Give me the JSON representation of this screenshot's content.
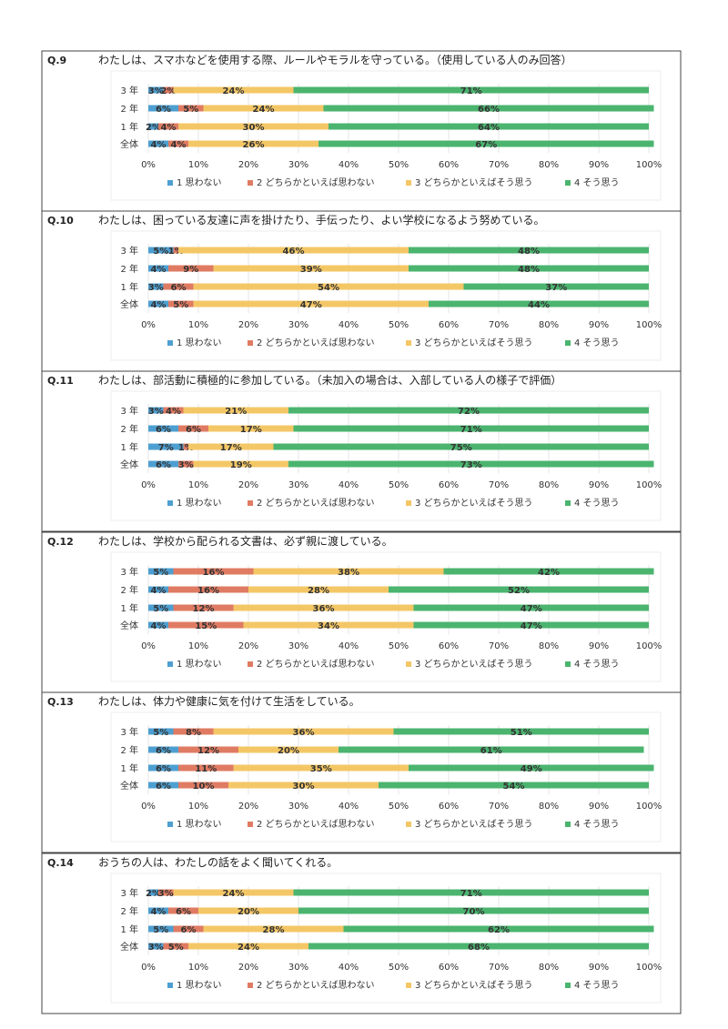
{
  "legend_labels": [
    "1 思わない",
    "2 どちらかといえば思わない",
    "3 どちらかといえばそう思う",
    "4 そう思う"
  ],
  "colors": {
    "s1": "#4e9fd1",
    "s2": "#e07b63",
    "s3": "#f4c766",
    "s4": "#4bb46f",
    "border": "#444444",
    "grid": "#e6e6e6",
    "plot_border": "#eeeeee"
  },
  "chart_data": [
    {
      "type": "bar",
      "stacked": "horizontal-100%",
      "qnum": "Q.9",
      "title": "わたしは、スマホなどを使用する際、ルールやモラルを守っている。（使用している人のみ回答）",
      "categories": [
        "3 年",
        "2 年",
        "1 年",
        "全体"
      ],
      "series": [
        {
          "name": "1 思わない",
          "values": [
            3,
            6,
            2,
            4
          ],
          "labels": [
            "3%",
            "6%",
            "2%",
            "4%"
          ]
        },
        {
          "name": "2 どちらかといえば思わない",
          "values": [
            2,
            5,
            4,
            4
          ],
          "labels": [
            "2%",
            "5%",
            "4%",
            "4%"
          ]
        },
        {
          "name": "3 どちらかといえばそう思う",
          "values": [
            24,
            24,
            30,
            26
          ],
          "labels": [
            "24%",
            "24%",
            "30%",
            "26%"
          ]
        },
        {
          "name": "4 そう思う",
          "values": [
            71,
            66,
            64,
            67
          ],
          "labels": [
            "71%",
            "66%",
            "64%",
            "67%"
          ]
        }
      ],
      "xlim": [
        0,
        100
      ],
      "xticks": [
        "0%",
        "10%",
        "20%",
        "30%",
        "40%",
        "50%",
        "60%",
        "70%",
        "80%",
        "90%",
        "100%"
      ]
    },
    {
      "type": "bar",
      "stacked": "horizontal-100%",
      "qnum": "Q.10",
      "title": "わたしは、困っている友達に声を掛けたり、手伝ったり、よい学校になるよう努めている。",
      "categories": [
        "3 年",
        "2 年",
        "1 年",
        "全体"
      ],
      "series": [
        {
          "name": "1 思わない",
          "values": [
            5,
            4,
            3,
            4
          ],
          "labels": [
            "5%",
            "4%",
            "3%",
            "4%"
          ]
        },
        {
          "name": "2 どちらかといえば思わない",
          "values": [
            1,
            9,
            6,
            5
          ],
          "labels": [
            "1%",
            "9%",
            "6%",
            "5%"
          ]
        },
        {
          "name": "3 どちらかといえばそう思う",
          "values": [
            46,
            39,
            54,
            47
          ],
          "labels": [
            "46%",
            "39%",
            "54%",
            "47%"
          ]
        },
        {
          "name": "4 そう思う",
          "values": [
            48,
            48,
            37,
            44
          ],
          "labels": [
            "48%",
            "48%",
            "37%",
            "44%"
          ]
        }
      ],
      "xlim": [
        0,
        100
      ],
      "xticks": [
        "0%",
        "10%",
        "20%",
        "30%",
        "40%",
        "50%",
        "60%",
        "70%",
        "80%",
        "90%",
        "100%"
      ]
    },
    {
      "type": "bar",
      "stacked": "horizontal-100%",
      "qnum": "Q.11",
      "title": "わたしは、部活動に積極的に参加している。（未加入の場合は、入部している人の様子で評価）",
      "categories": [
        "3 年",
        "2 年",
        "1 年",
        "全体"
      ],
      "series": [
        {
          "name": "1 思わない",
          "values": [
            3,
            6,
            7,
            6
          ],
          "labels": [
            "3%",
            "6%",
            "7%",
            "6%"
          ]
        },
        {
          "name": "2 どちらかといえば思わない",
          "values": [
            4,
            6,
            1,
            3
          ],
          "labels": [
            "4%",
            "6%",
            "1%",
            "3%"
          ]
        },
        {
          "name": "3 どちらかといえばそう思う",
          "values": [
            21,
            17,
            17,
            19
          ],
          "labels": [
            "21%",
            "17%",
            "17%",
            "19%"
          ]
        },
        {
          "name": "4 そう思う",
          "values": [
            72,
            71,
            75,
            73
          ],
          "labels": [
            "72%",
            "71%",
            "75%",
            "73%"
          ]
        }
      ],
      "xlim": [
        0,
        100
      ],
      "xticks": [
        "0%",
        "10%",
        "20%",
        "30%",
        "40%",
        "50%",
        "60%",
        "70%",
        "80%",
        "90%",
        "100%"
      ]
    },
    {
      "type": "bar",
      "stacked": "horizontal-100%",
      "qnum": "Q.12",
      "title": "わたしは、学校から配られる文書は、必ず親に渡している。",
      "categories": [
        "3 年",
        "2 年",
        "1 年",
        "全体"
      ],
      "series": [
        {
          "name": "1 思わない",
          "values": [
            5,
            4,
            5,
            4
          ],
          "labels": [
            "5%",
            "4%",
            "5%",
            "4%"
          ]
        },
        {
          "name": "2 どちらかといえば思わない",
          "values": [
            16,
            16,
            12,
            15
          ],
          "labels": [
            "16%",
            "16%",
            "12%",
            "15%"
          ]
        },
        {
          "name": "3 どちらかといえばそう思う",
          "values": [
            38,
            28,
            36,
            34
          ],
          "labels": [
            "38%",
            "28%",
            "36%",
            "34%"
          ]
        },
        {
          "name": "4 そう思う",
          "values": [
            42,
            52,
            47,
            47
          ],
          "labels": [
            "42%",
            "52%",
            "47%",
            "47%"
          ]
        }
      ],
      "xlim": [
        0,
        100
      ],
      "xticks": [
        "0%",
        "10%",
        "20%",
        "30%",
        "40%",
        "50%",
        "60%",
        "70%",
        "80%",
        "90%",
        "100%"
      ]
    },
    {
      "type": "bar",
      "stacked": "horizontal-100%",
      "qnum": "Q.13",
      "title": "わたしは、体力や健康に気を付けて生活をしている。",
      "categories": [
        "3 年",
        "2 年",
        "1 年",
        "全体"
      ],
      "series": [
        {
          "name": "1 思わない",
          "values": [
            5,
            6,
            6,
            6
          ],
          "labels": [
            "5%",
            "6%",
            "6%",
            "6%"
          ]
        },
        {
          "name": "2 どちらかといえば思わない",
          "values": [
            8,
            12,
            11,
            10
          ],
          "labels": [
            "8%",
            "12%",
            "11%",
            "10%"
          ]
        },
        {
          "name": "3 どちらかといえばそう思う",
          "values": [
            36,
            20,
            35,
            30
          ],
          "labels": [
            "36%",
            "20%",
            "35%",
            "30%"
          ]
        },
        {
          "name": "4 そう思う",
          "values": [
            51,
            61,
            49,
            54
          ],
          "labels": [
            "51%",
            "61%",
            "49%",
            "54%"
          ]
        }
      ],
      "xlim": [
        0,
        100
      ],
      "xticks": [
        "0%",
        "10%",
        "20%",
        "30%",
        "40%",
        "50%",
        "60%",
        "70%",
        "80%",
        "90%",
        "100%"
      ]
    },
    {
      "type": "bar",
      "stacked": "horizontal-100%",
      "qnum": "Q.14",
      "title": "おうちの人は、わたしの話をよく聞いてくれる。",
      "categories": [
        "3 年",
        "2 年",
        "1 年",
        "全体"
      ],
      "series": [
        {
          "name": "1 思わない",
          "values": [
            2,
            4,
            5,
            3
          ],
          "labels": [
            "2%",
            "4%",
            "5%",
            "3%"
          ]
        },
        {
          "name": "2 どちらかといえば思わない",
          "values": [
            3,
            6,
            6,
            5
          ],
          "labels": [
            "3%",
            "6%",
            "6%",
            "5%"
          ]
        },
        {
          "name": "3 どちらかといえばそう思う",
          "values": [
            24,
            20,
            28,
            24
          ],
          "labels": [
            "24%",
            "20%",
            "28%",
            "24%"
          ]
        },
        {
          "name": "4 そう思う",
          "values": [
            71,
            70,
            62,
            68
          ],
          "labels": [
            "71%",
            "70%",
            "62%",
            "68%"
          ]
        }
      ],
      "xlim": [
        0,
        100
      ],
      "xticks": [
        "0%",
        "10%",
        "20%",
        "30%",
        "40%",
        "50%",
        "60%",
        "70%",
        "80%",
        "90%",
        "100%"
      ]
    }
  ]
}
